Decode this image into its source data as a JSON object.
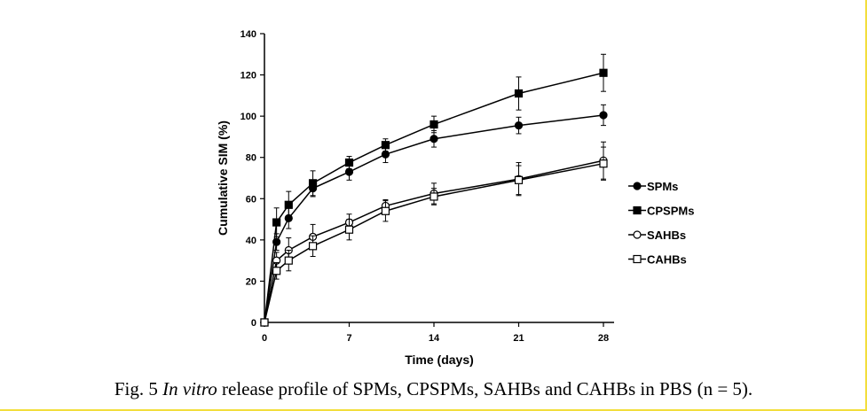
{
  "chart_data": {
    "type": "line",
    "xlabel": "Time (days)",
    "ylabel": "Cumulative SIM (%)",
    "x_ticks": [
      0,
      7,
      14,
      21,
      28
    ],
    "y_ticks": [
      0,
      20,
      40,
      60,
      80,
      100,
      120,
      140
    ],
    "xlim": [
      0,
      28
    ],
    "ylim": [
      0,
      140
    ],
    "legend_position": "right",
    "grid": false,
    "x": [
      0,
      1,
      2,
      4,
      7,
      10,
      14,
      21,
      28
    ],
    "series": [
      {
        "name": "SPMs",
        "marker": "filled-circle",
        "values": [
          0,
          39,
          50.5,
          65,
          73,
          81.5,
          89,
          95.5,
          100.5
        ],
        "errors": [
          0,
          4,
          5,
          4,
          4,
          4,
          4,
          4,
          5
        ]
      },
      {
        "name": "CPSPMs",
        "marker": "filled-square",
        "values": [
          0,
          48.5,
          57,
          67.5,
          77.5,
          86,
          96,
          111,
          121
        ],
        "errors": [
          0,
          7,
          6.5,
          6,
          3,
          3,
          4,
          8,
          9
        ]
      },
      {
        "name": "SAHBs",
        "marker": "open-circle",
        "values": [
          0,
          30,
          35,
          41.5,
          48.5,
          56.5,
          62.5,
          69.5,
          78.5
        ],
        "errors": [
          0,
          4,
          6,
          6,
          4,
          3,
          5,
          8,
          9
        ]
      },
      {
        "name": "CAHBs",
        "marker": "open-square",
        "values": [
          0,
          25,
          30,
          37,
          45,
          54,
          61,
          69,
          77
        ],
        "errors": [
          0,
          4,
          5,
          5,
          5,
          5,
          4,
          7,
          8
        ]
      }
    ]
  },
  "caption": {
    "prefix": "Fig. 5 ",
    "italic": "In vitro",
    "suffix": " release profile of SPMs, CPSPMs, SAHBs and CAHBs in PBS (n = 5)."
  }
}
